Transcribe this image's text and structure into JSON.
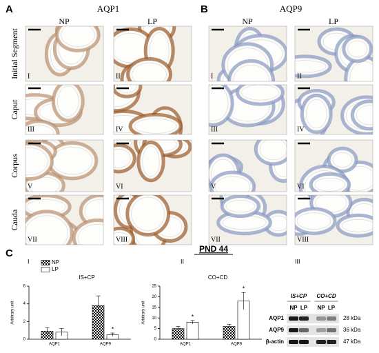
{
  "panel_a": {
    "label": "A",
    "title": "AQP1",
    "columns": [
      "NP",
      "LP"
    ],
    "tiles": [
      "I",
      "II",
      "III",
      "IV",
      "V",
      "VI",
      "VII",
      "VIII"
    ]
  },
  "panel_b": {
    "label": "B",
    "title": "AQP9",
    "columns": [
      "NP",
      "LP"
    ],
    "tiles": [
      "I",
      "II",
      "III",
      "IV",
      "V",
      "VI",
      "VII",
      "VIII"
    ]
  },
  "rows": [
    "Initial Segment",
    "Caput",
    "Corpus",
    "Cauda"
  ],
  "panel_c": {
    "label": "C",
    "title": "PND 44"
  },
  "chart_data": [
    {
      "type": "bar",
      "label": "I",
      "title": "IS+CP",
      "y_label": "Arbitrary unit",
      "categories": [
        "AQP1",
        "AQP9"
      ],
      "series": [
        {
          "name": "NP",
          "color": "#000000",
          "pattern": "checker",
          "values": [
            0.9,
            3.8
          ],
          "errors": [
            0.4,
            1.1
          ],
          "annotations": [
            null,
            null
          ]
        },
        {
          "name": "LP",
          "color": "#ffffff",
          "values": [
            0.8,
            0.5
          ],
          "errors": [
            0.4,
            0.2
          ],
          "annotations": [
            null,
            "*"
          ]
        }
      ],
      "ylim": [
        0,
        6
      ],
      "yticks": [
        0,
        2,
        4,
        6
      ],
      "legend": true
    },
    {
      "type": "bar",
      "label": "II",
      "title": "CO+CD",
      "y_label": "Arbitrary unit",
      "categories": [
        "AQP1",
        "AQP9"
      ],
      "series": [
        {
          "name": "NP",
          "color": "#000000",
          "pattern": "checker",
          "values": [
            5,
            6
          ],
          "errors": [
            1,
            1
          ],
          "annotations": [
            null,
            null
          ]
        },
        {
          "name": "LP",
          "color": "#ffffff",
          "values": [
            8,
            18
          ],
          "errors": [
            0.8,
            4
          ],
          "annotations": [
            "*",
            "*"
          ]
        }
      ],
      "ylim": [
        0,
        25
      ],
      "yticks": [
        0,
        5,
        10,
        15,
        20,
        25
      ],
      "legend": false
    }
  ],
  "blot": {
    "label": "III",
    "groups": [
      "IS+CP",
      "CO+CD"
    ],
    "lanes": [
      "NP",
      "LP",
      "NP",
      "LP"
    ],
    "proteins": [
      "AQP1",
      "AQP9",
      "β-actin"
    ],
    "sizes": [
      "28 kDa",
      "36 kDa",
      "47 kDa"
    ]
  }
}
